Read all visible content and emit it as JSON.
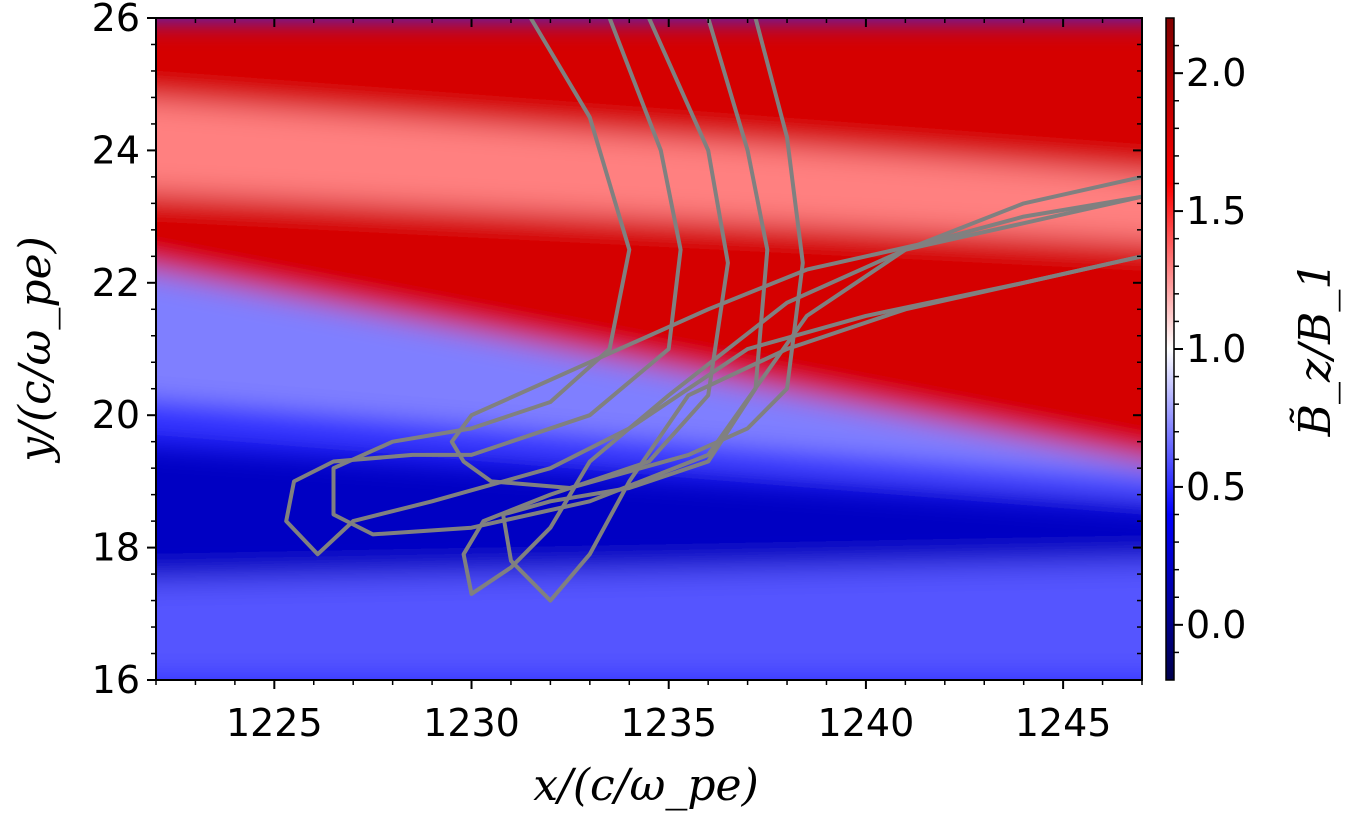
{
  "chart_data": {
    "type": "heatmap",
    "title": "",
    "xlabel": "x/(c/ω_pe)",
    "ylabel": "y/(c/ω_pe)",
    "colorbar_label": "B̃_z/B_1",
    "xlim": [
      1222,
      1247
    ],
    "ylim": [
      16,
      26
    ],
    "x_ticks": [
      1225,
      1230,
      1235,
      1240,
      1245
    ],
    "y_ticks": [
      16,
      18,
      20,
      22,
      24,
      26
    ],
    "colorbar_ticks": [
      0.0,
      0.5,
      1.0,
      1.5,
      2.0
    ],
    "colorbar_range": [
      -0.2,
      2.2
    ],
    "colormap": "seismic",
    "colors": {
      "low": "#00004c",
      "mid": "#ffffff",
      "high": "#800000",
      "trajectory": "#808080"
    },
    "field_regions": [
      {
        "desc": "upper band",
        "x": [
          1222,
          1247
        ],
        "y_from": [
          24.8,
          23.6
        ],
        "y_to": [
          26,
          26
        ],
        "value": 1.8
      },
      {
        "desc": "light stripe",
        "x": [
          1222,
          1247
        ],
        "y_from": [
          23.4,
          22.6
        ],
        "y_to": [
          24.8,
          23.6
        ],
        "value": 1.3
      },
      {
        "desc": "red band",
        "x": [
          1222,
          1247
        ],
        "y_from": [
          21.0,
          19.0
        ],
        "y_to": [
          23.4,
          22.6
        ],
        "value": 1.8
      },
      {
        "desc": "light blue band",
        "x": [
          1222,
          1247
        ],
        "y_from": [
          20.2,
          18.9
        ],
        "y_to": [
          22.3,
          19.2
        ],
        "value": 0.7
      },
      {
        "desc": "deep blue band",
        "x": [
          1222,
          1247
        ],
        "y_from": [
          17.5,
          17.8
        ],
        "y_to": [
          19.6,
          18.6
        ],
        "value": 0.2
      },
      {
        "desc": "bottom blue",
        "x": [
          1222,
          1247
        ],
        "y_from": [
          16,
          16
        ],
        "y_to": [
          17.5,
          17.8
        ],
        "value": 0.6
      }
    ],
    "trajectories": [
      {
        "points": [
          [
            1231.5,
            26
          ],
          [
            1233,
            24.5
          ],
          [
            1234,
            22.5
          ],
          [
            1233.5,
            21
          ],
          [
            1232,
            20.2
          ],
          [
            1230,
            19.8
          ],
          [
            1228,
            19.6
          ],
          [
            1226.5,
            19.2
          ],
          [
            1226.5,
            18.5
          ],
          [
            1227.5,
            18.2
          ],
          [
            1230,
            18.3
          ],
          [
            1233,
            18.7
          ],
          [
            1236,
            19.4
          ],
          [
            1238.5,
            21.5
          ],
          [
            1241,
            22.5
          ],
          [
            1244,
            23.2
          ],
          [
            1247,
            23.6
          ]
        ]
      },
      {
        "points": [
          [
            1233.5,
            26
          ],
          [
            1234.8,
            24
          ],
          [
            1235.3,
            22.5
          ],
          [
            1235,
            21
          ],
          [
            1233,
            20
          ],
          [
            1230,
            19.4
          ],
          [
            1228.5,
            19.4
          ],
          [
            1226.5,
            19.3
          ],
          [
            1225.5,
            19
          ],
          [
            1225.3,
            18.4
          ],
          [
            1226.1,
            17.9
          ],
          [
            1227,
            18.4
          ],
          [
            1229,
            18.7
          ],
          [
            1232,
            19.2
          ],
          [
            1234,
            19.8
          ],
          [
            1237,
            21
          ],
          [
            1240,
            21.5
          ],
          [
            1244,
            22
          ],
          [
            1247,
            22.4
          ]
        ]
      },
      {
        "points": [
          [
            1234.5,
            26
          ],
          [
            1236,
            24
          ],
          [
            1236.5,
            22.3
          ],
          [
            1236,
            20.3
          ],
          [
            1234.5,
            19.3
          ],
          [
            1232,
            18.8
          ],
          [
            1230.3,
            18.4
          ],
          [
            1229.8,
            17.9
          ],
          [
            1230,
            17.3
          ],
          [
            1231,
            17.7
          ],
          [
            1232,
            18.3
          ],
          [
            1233,
            19.3
          ],
          [
            1235,
            20.3
          ],
          [
            1238,
            21.7
          ],
          [
            1241,
            22.5
          ],
          [
            1244,
            22.9
          ],
          [
            1247,
            23.3
          ]
        ]
      },
      {
        "points": [
          [
            1236,
            26
          ],
          [
            1237,
            24
          ],
          [
            1237.5,
            22.5
          ],
          [
            1237.2,
            20.4
          ],
          [
            1236,
            19.3
          ],
          [
            1234,
            18.9
          ],
          [
            1232,
            18.7
          ],
          [
            1230.8,
            18.5
          ],
          [
            1231,
            17.8
          ],
          [
            1232,
            17.2
          ],
          [
            1233,
            17.9
          ],
          [
            1234,
            19
          ],
          [
            1235.5,
            20.3
          ],
          [
            1238,
            21
          ],
          [
            1241,
            21.6
          ],
          [
            1244,
            22
          ],
          [
            1247,
            22.4
          ]
        ]
      },
      {
        "points": [
          [
            1237.2,
            26
          ],
          [
            1238,
            24.2
          ],
          [
            1238.4,
            22.3
          ],
          [
            1238,
            20.4
          ],
          [
            1237,
            19.8
          ],
          [
            1235.5,
            19.4
          ],
          [
            1232.5,
            18.9
          ],
          [
            1230.5,
            19
          ],
          [
            1229.8,
            19.3
          ],
          [
            1229.5,
            19.6
          ],
          [
            1230,
            20
          ],
          [
            1233,
            20.8
          ],
          [
            1236,
            21.6
          ],
          [
            1238.5,
            22.2
          ],
          [
            1241.5,
            22.6
          ],
          [
            1244,
            23
          ],
          [
            1247,
            23.3
          ]
        ]
      }
    ]
  }
}
